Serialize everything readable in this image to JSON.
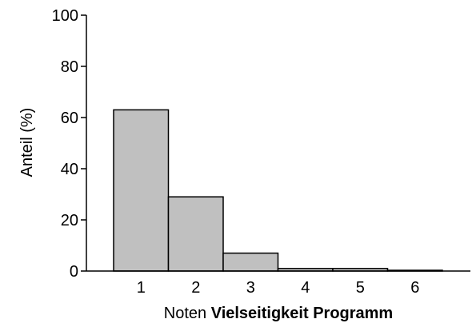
{
  "chart_data": {
    "type": "bar",
    "categories": [
      "1",
      "2",
      "3",
      "4",
      "5",
      "6"
    ],
    "values": [
      63,
      29,
      7,
      1,
      1,
      0.3
    ],
    "ylabel": "Anteil (%)",
    "xlabel_prefix": "Noten",
    "xlabel_bold": "Vielseitigkeit Programm",
    "ylim": [
      0,
      100
    ],
    "yticks": [
      "0",
      "20",
      "40",
      "60",
      "80",
      "100"
    ],
    "bar_color": "#c0c0c0",
    "grid": false,
    "legend": "none"
  }
}
